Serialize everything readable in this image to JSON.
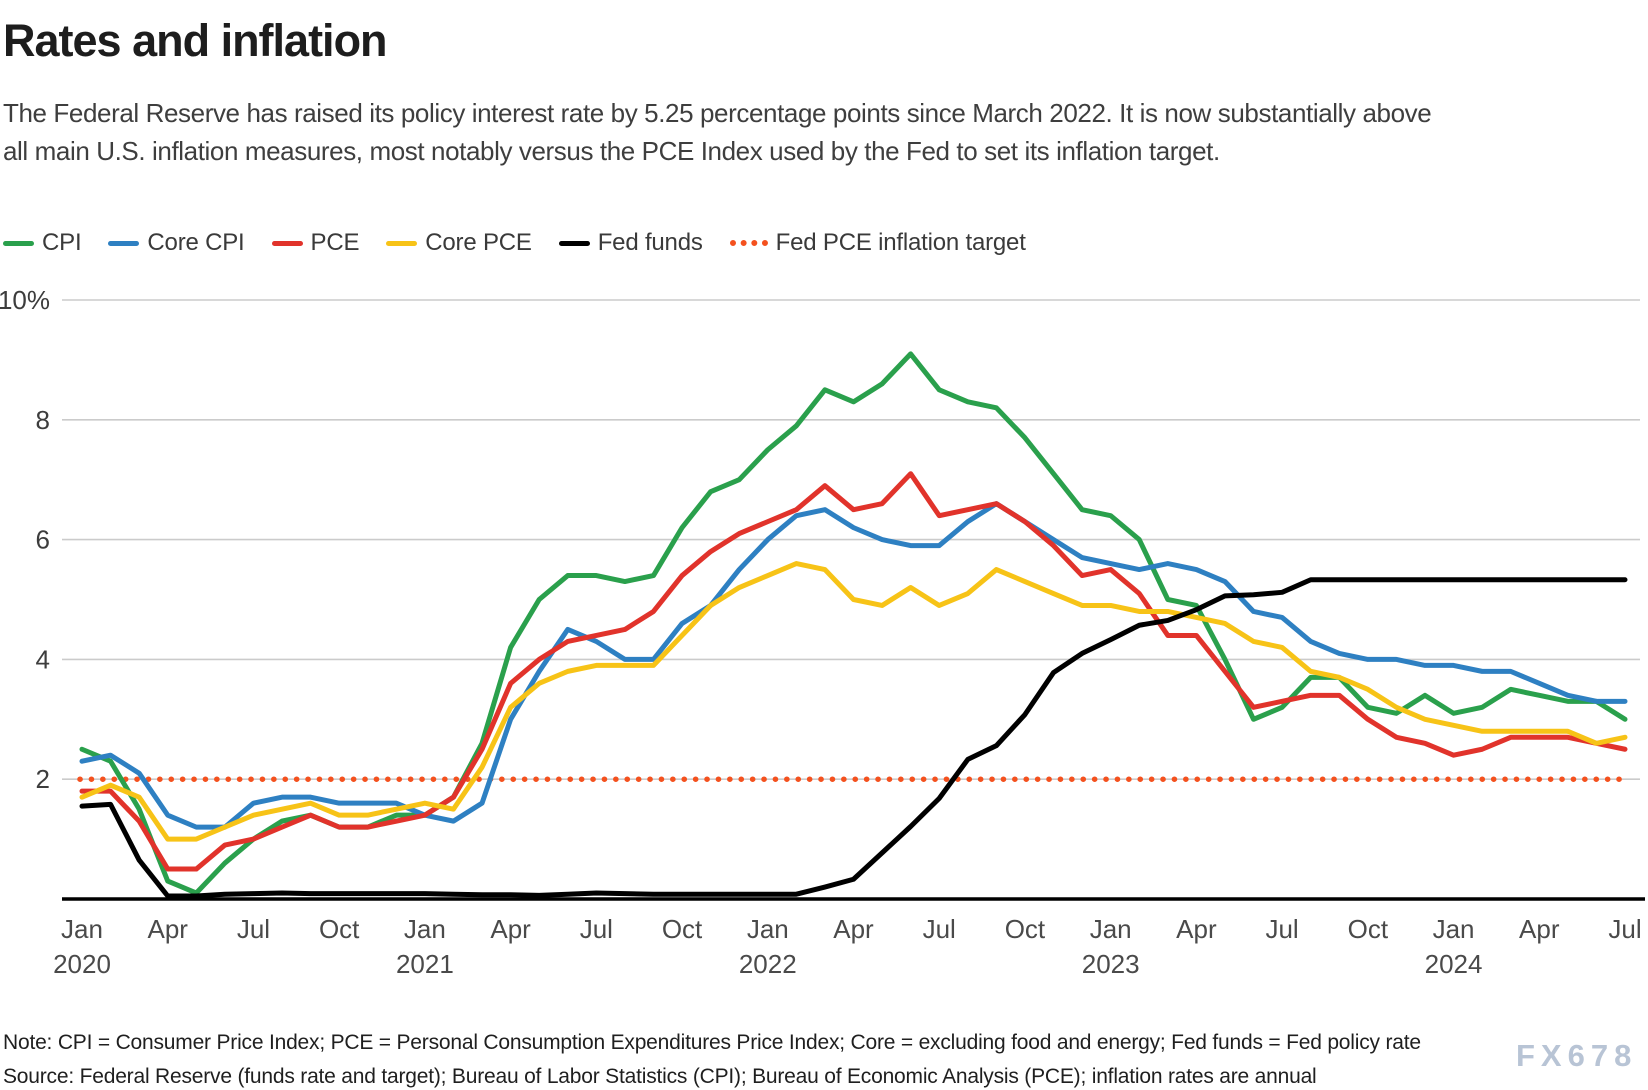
{
  "header": {
    "title": "Rates and inflation",
    "subtitle_lines": [
      "The Federal Reserve has raised its policy interest rate by 5.25 percentage points since March 2022. It is now substantially above",
      "all main U.S. inflation measures, most notably versus the PCE Index used by the Fed to set its inflation target."
    ]
  },
  "legend": {
    "items": [
      {
        "label": "CPI",
        "series": "CPI"
      },
      {
        "label": "Core CPI",
        "series": "Core CPI"
      },
      {
        "label": "PCE",
        "series": "PCE"
      },
      {
        "label": "Core PCE",
        "series": "Core PCE"
      },
      {
        "label": "Fed funds",
        "series": "Fed funds"
      },
      {
        "label": "Fed PCE inflation target",
        "series": "Fed PCE inflation target"
      }
    ]
  },
  "chart_data": {
    "type": "line",
    "title": "Rates and inflation",
    "xlabel": "",
    "ylabel": "",
    "ylim": [
      0,
      10
    ],
    "grid": true,
    "legend_position": "top",
    "x_unit": "month",
    "x_range": "Jan 2020 - Jul 2024",
    "y_ticks": [
      {
        "value": 10,
        "label": "10%"
      },
      {
        "value": 8,
        "label": "8"
      },
      {
        "value": 6,
        "label": "6"
      },
      {
        "value": 4,
        "label": "4"
      },
      {
        "value": 2,
        "label": "2"
      }
    ],
    "x_ticks": [
      {
        "index": 0,
        "month": "Jan",
        "year": "2020"
      },
      {
        "index": 3,
        "month": "Apr"
      },
      {
        "index": 6,
        "month": "Jul"
      },
      {
        "index": 9,
        "month": "Oct"
      },
      {
        "index": 12,
        "month": "Jan",
        "year": "2021"
      },
      {
        "index": 15,
        "month": "Apr"
      },
      {
        "index": 18,
        "month": "Jul"
      },
      {
        "index": 21,
        "month": "Oct"
      },
      {
        "index": 24,
        "month": "Jan",
        "year": "2022"
      },
      {
        "index": 27,
        "month": "Apr"
      },
      {
        "index": 30,
        "month": "Jul"
      },
      {
        "index": 33,
        "month": "Oct"
      },
      {
        "index": 36,
        "month": "Jan",
        "year": "2023"
      },
      {
        "index": 39,
        "month": "Apr"
      },
      {
        "index": 42,
        "month": "Jul"
      },
      {
        "index": 45,
        "month": "Oct"
      },
      {
        "index": 48,
        "month": "Jan",
        "year": "2024"
      },
      {
        "index": 51,
        "month": "Apr"
      },
      {
        "index": 54,
        "month": "Jul"
      }
    ],
    "series": [
      {
        "name": "CPI",
        "color": "#2aa04c",
        "values": [
          2.5,
          2.3,
          1.5,
          0.3,
          0.1,
          0.6,
          1.0,
          1.3,
          1.4,
          1.2,
          1.2,
          1.4,
          1.4,
          1.7,
          2.6,
          4.2,
          5.0,
          5.4,
          5.4,
          5.3,
          5.4,
          6.2,
          6.8,
          7.0,
          7.5,
          7.9,
          8.5,
          8.3,
          8.6,
          9.1,
          8.5,
          8.3,
          8.2,
          7.7,
          7.1,
          6.5,
          6.4,
          6.0,
          5.0,
          4.9,
          4.0,
          3.0,
          3.2,
          3.7,
          3.7,
          3.2,
          3.1,
          3.4,
          3.1,
          3.2,
          3.5,
          3.4,
          3.3,
          3.3,
          3.0
        ]
      },
      {
        "name": "Core CPI",
        "color": "#2e80c2",
        "values": [
          2.3,
          2.4,
          2.1,
          1.4,
          1.2,
          1.2,
          1.6,
          1.7,
          1.7,
          1.6,
          1.6,
          1.6,
          1.4,
          1.3,
          1.6,
          3.0,
          3.8,
          4.5,
          4.3,
          4.0,
          4.0,
          4.6,
          4.9,
          5.5,
          6.0,
          6.4,
          6.5,
          6.2,
          6.0,
          5.9,
          5.9,
          6.3,
          6.6,
          6.3,
          6.0,
          5.7,
          5.6,
          5.5,
          5.6,
          5.5,
          5.3,
          4.8,
          4.7,
          4.3,
          4.1,
          4.0,
          4.0,
          3.9,
          3.9,
          3.8,
          3.8,
          3.6,
          3.4,
          3.3,
          3.3
        ]
      },
      {
        "name": "PCE",
        "color": "#e1332b",
        "values": [
          1.8,
          1.8,
          1.3,
          0.5,
          0.5,
          0.9,
          1.0,
          1.2,
          1.4,
          1.2,
          1.2,
          1.3,
          1.4,
          1.7,
          2.5,
          3.6,
          4.0,
          4.3,
          4.4,
          4.5,
          4.8,
          5.4,
          5.8,
          6.1,
          6.3,
          6.5,
          6.9,
          6.5,
          6.6,
          7.1,
          6.4,
          6.5,
          6.6,
          6.3,
          5.9,
          5.4,
          5.5,
          5.1,
          4.4,
          4.4,
          3.8,
          3.2,
          3.3,
          3.4,
          3.4,
          3.0,
          2.7,
          2.6,
          2.4,
          2.5,
          2.7,
          2.7,
          2.7,
          2.6,
          2.5
        ]
      },
      {
        "name": "Core PCE",
        "color": "#f7c317",
        "values": [
          1.7,
          1.9,
          1.7,
          1.0,
          1.0,
          1.2,
          1.4,
          1.5,
          1.6,
          1.4,
          1.4,
          1.5,
          1.6,
          1.5,
          2.2,
          3.2,
          3.6,
          3.8,
          3.9,
          3.9,
          3.9,
          4.4,
          4.9,
          5.2,
          5.4,
          5.6,
          5.5,
          5.0,
          4.9,
          5.2,
          4.9,
          5.1,
          5.5,
          5.3,
          5.1,
          4.9,
          4.9,
          4.8,
          4.8,
          4.7,
          4.6,
          4.3,
          4.2,
          3.8,
          3.7,
          3.5,
          3.2,
          3.0,
          2.9,
          2.8,
          2.8,
          2.8,
          2.8,
          2.6,
          2.7
        ]
      },
      {
        "name": "Fed funds",
        "color": "#000000",
        "values": [
          1.55,
          1.58,
          0.65,
          0.05,
          0.05,
          0.08,
          0.09,
          0.1,
          0.09,
          0.09,
          0.09,
          0.09,
          0.09,
          0.08,
          0.07,
          0.07,
          0.06,
          0.08,
          0.1,
          0.09,
          0.08,
          0.08,
          0.08,
          0.08,
          0.08,
          0.08,
          0.2,
          0.33,
          0.77,
          1.21,
          1.68,
          2.33,
          2.56,
          3.08,
          3.78,
          4.1,
          4.33,
          4.57,
          4.65,
          4.83,
          5.06,
          5.08,
          5.12,
          5.33,
          5.33,
          5.33,
          5.33,
          5.33,
          5.33,
          5.33,
          5.33,
          5.33,
          5.33,
          5.33,
          5.33
        ]
      },
      {
        "name": "Fed PCE inflation target",
        "color": "#f4511e",
        "style": "dotted",
        "value": 2.0
      }
    ]
  },
  "footer": {
    "note": "Note: CPI = Consumer Price Index; PCE = Personal Consumption Expenditures Price Index; Core = excluding food and energy; Fed funds = Fed policy rate",
    "source": "Source: Federal Reserve (funds rate and target); Bureau of Labor Statistics (CPI); Bureau of Economic Analysis (PCE); inflation rates are annual",
    "watermark": "FX678"
  }
}
